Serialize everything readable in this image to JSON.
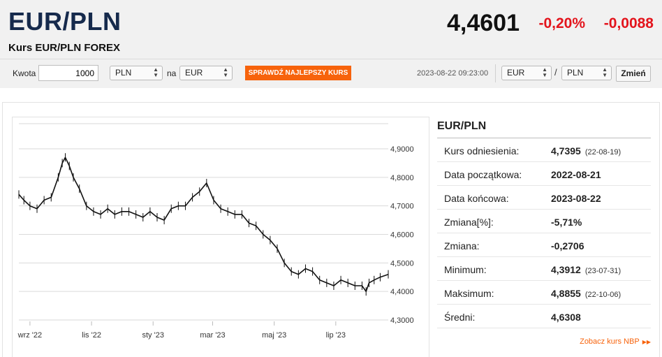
{
  "header": {
    "pair": "EUR/PLN",
    "subtitle": "Kurs EUR/PLN FOREX",
    "price": "4,4601",
    "change_pct": "-0,20%",
    "change_abs": "-0,0088"
  },
  "toolbar": {
    "amount_label": "Kwota",
    "amount_value": "1000",
    "from_currency": "PLN",
    "na_label": "na",
    "to_currency": "EUR",
    "best_rate_button": "SPRAWDŹ NAJLEPSZY KURS",
    "timestamp": "2023-08-22 09:23:00",
    "pair_base": "EUR",
    "slash": "/",
    "pair_quote": "PLN",
    "change_button": "Zmień"
  },
  "colors": {
    "accent": "#f7630c",
    "negative": "#e3141c",
    "title": "#162a4c"
  },
  "stats": {
    "title": "EUR/PLN",
    "rows": [
      {
        "label": "Kurs odniesienia:",
        "value": "4,7395",
        "date": "(22-08-19)"
      },
      {
        "label": "Data początkowa:",
        "value": "2022-08-21",
        "date": ""
      },
      {
        "label": "Data końcowa:",
        "value": "2023-08-22",
        "date": ""
      },
      {
        "label": "Zmiana[%]:",
        "value": "-5,71%",
        "date": ""
      },
      {
        "label": "Zmiana:",
        "value": "-0,2706",
        "date": ""
      },
      {
        "label": "Minimum:",
        "value": "4,3912",
        "date": "(23-07-31)"
      },
      {
        "label": "Maksimum:",
        "value": "4,8855",
        "date": "(22-10-06)"
      },
      {
        "label": "Średni:",
        "value": "4,6308",
        "date": ""
      }
    ],
    "nbp_link": "Zobacz kurs NBP"
  },
  "chart_data": {
    "type": "line",
    "title": "",
    "xlabel": "",
    "ylabel": "",
    "ylim": [
      4.3,
      4.9
    ],
    "y_ticks": [
      "4,9000",
      "4,8000",
      "4,7000",
      "4,6000",
      "4,5000",
      "4,4000",
      "4,3000"
    ],
    "y_tick_values": [
      4.9,
      4.8,
      4.7,
      4.6,
      4.5,
      4.4,
      4.3
    ],
    "x_ticks": [
      "wrz '22",
      "lis '22",
      "sty '23",
      "mar '23",
      "maj '23",
      "lip '23"
    ],
    "x_tick_dates": [
      "2022-09-01",
      "2022-11-01",
      "2023-01-01",
      "2023-03-01",
      "2023-05-01",
      "2023-07-01"
    ],
    "x_range": [
      "2022-08-21",
      "2023-08-22"
    ],
    "grid": true,
    "series": [
      {
        "x": [
          "2022-08-21",
          "2022-08-26",
          "2022-09-01",
          "2022-09-08",
          "2022-09-15",
          "2022-09-22",
          "2022-09-29",
          "2022-10-03",
          "2022-10-06",
          "2022-10-10",
          "2022-10-14",
          "2022-10-20",
          "2022-10-27",
          "2022-11-03",
          "2022-11-10",
          "2022-11-17",
          "2022-11-24",
          "2022-12-01",
          "2022-12-08",
          "2022-12-15",
          "2022-12-22",
          "2022-12-29",
          "2023-01-05",
          "2023-01-12",
          "2023-01-19",
          "2023-01-26",
          "2023-02-02",
          "2023-02-09",
          "2023-02-16",
          "2023-02-23",
          "2023-03-02",
          "2023-03-09",
          "2023-03-16",
          "2023-03-23",
          "2023-03-30",
          "2023-04-06",
          "2023-04-13",
          "2023-04-20",
          "2023-04-27",
          "2023-05-04",
          "2023-05-11",
          "2023-05-18",
          "2023-05-25",
          "2023-06-01",
          "2023-06-08",
          "2023-06-15",
          "2023-06-22",
          "2023-06-29",
          "2023-07-06",
          "2023-07-13",
          "2023-07-20",
          "2023-07-27",
          "2023-07-31",
          "2023-08-03",
          "2023-08-08",
          "2023-08-14",
          "2023-08-22"
        ],
        "values": [
          4.74,
          4.72,
          4.7,
          4.69,
          4.72,
          4.73,
          4.8,
          4.85,
          4.87,
          4.84,
          4.8,
          4.76,
          4.7,
          4.68,
          4.67,
          4.69,
          4.67,
          4.68,
          4.68,
          4.67,
          4.66,
          4.68,
          4.66,
          4.65,
          4.69,
          4.7,
          4.7,
          4.73,
          4.75,
          4.78,
          4.72,
          4.69,
          4.68,
          4.67,
          4.67,
          4.64,
          4.63,
          4.6,
          4.58,
          4.55,
          4.5,
          4.47,
          4.46,
          4.48,
          4.47,
          4.44,
          4.43,
          4.42,
          4.44,
          4.43,
          4.42,
          4.42,
          4.4,
          4.43,
          4.44,
          4.45,
          4.46
        ]
      }
    ]
  }
}
